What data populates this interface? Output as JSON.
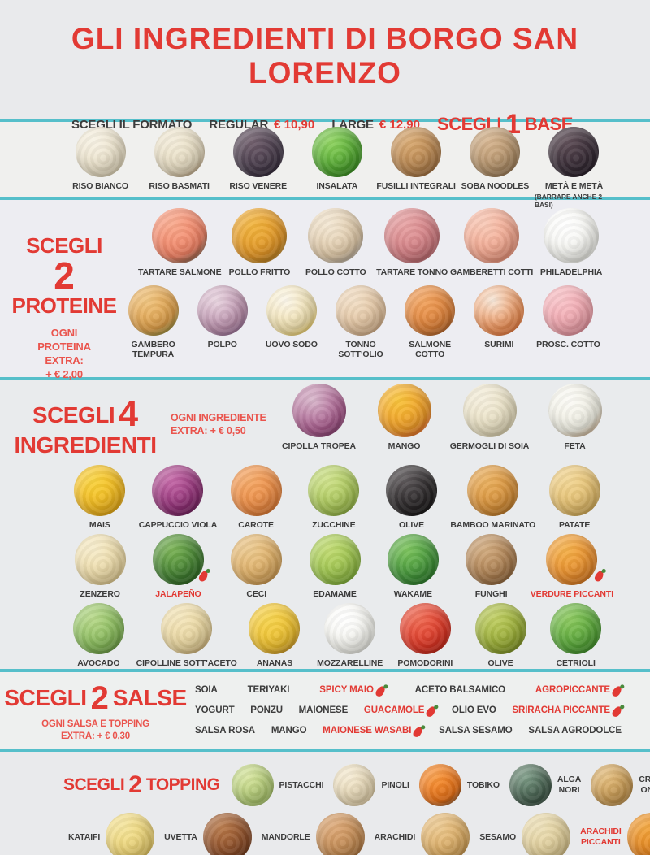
{
  "page": {
    "title": "GLI INGREDIENTI DI BORGO SAN LORENZO",
    "colors": {
      "accent_red": "#e23a34",
      "note_red": "#ea544d",
      "teal": "#56bfca",
      "text_dark": "#3c3c3c"
    }
  },
  "format_bar": {
    "choose_label": "SCEGLI IL FORMATO",
    "options": [
      {
        "name": "REGULAR",
        "price": "€ 10,90"
      },
      {
        "name": "LARGE",
        "price": "€ 12,90"
      }
    ],
    "base_heading": {
      "word1": "SCEGLI",
      "num": "1",
      "word2": "BASE"
    }
  },
  "base": {
    "items": [
      {
        "label": "RISO BIANCO",
        "colors": [
          "#f7f2e4",
          "#e9dfc6",
          "#d5c8a5"
        ]
      },
      {
        "label": "RISO BASMATI",
        "colors": [
          "#f3ecd9",
          "#e4d9be",
          "#9c7c54"
        ]
      },
      {
        "label": "RISO VENERE",
        "colors": [
          "#6e5c6a",
          "#453a49",
          "#282031"
        ]
      },
      {
        "label": "INSALATA",
        "colors": [
          "#8ed45e",
          "#4da32e",
          "#2e7c1e"
        ]
      },
      {
        "label": "FUSILLI INTEGRALI",
        "colors": [
          "#d8a86f",
          "#b5834e",
          "#8a5d33"
        ]
      },
      {
        "label": "SOBA NOODLES",
        "colors": [
          "#d6b48e",
          "#b08f68",
          "#866747"
        ]
      },
      {
        "label": "METÀ E METÀ",
        "sub": "(BARRARE ANCHE 2 BASI)",
        "colors": [
          "#5c4b54",
          "#352a34",
          "#1e1720"
        ]
      }
    ]
  },
  "proteine": {
    "heading": {
      "word1": "SCEGLI",
      "num": "2",
      "word2": "PROTEINE"
    },
    "extra_note": "OGNI\nPROTEINA\nEXTRA:\n+ € 2,00",
    "rows": [
      [
        {
          "label": "TARTARE SALMONE",
          "colors": [
            "#f9a98c",
            "#ef8063",
            "#2b4a3c"
          ]
        },
        {
          "label": "POLLO FRITTO",
          "colors": [
            "#f2b53e",
            "#e09426",
            "#8a6a22"
          ]
        },
        {
          "label": "POLLO COTTO",
          "colors": [
            "#f4e8d4",
            "#ddc6a5",
            "#8e8e90"
          ]
        },
        {
          "label": "TARTARE TONNO",
          "colors": [
            "#e8a3a4",
            "#d07b80",
            "#9e5156"
          ]
        },
        {
          "label": "GAMBERETTI COTTI",
          "colors": [
            "#f9cab7",
            "#f0a28a",
            "#dd7c60"
          ]
        },
        {
          "label": "PHILADELPHIA",
          "colors": [
            "#ffffff",
            "#f3f3ee",
            "#d6d6cf"
          ]
        }
      ],
      [
        {
          "label": "GAMBERO\nTEMPURA",
          "colors": [
            "#f0c47e",
            "#de9e48",
            "#5e8440"
          ]
        },
        {
          "label": "POLPO",
          "colors": [
            "#e9d5e0",
            "#bb8fac",
            "#7e5a88"
          ]
        },
        {
          "label": "UOVO SODO",
          "colors": [
            "#fbf6ea",
            "#f3e2ad",
            "#ecc22e"
          ]
        },
        {
          "label": "TONNO\nSOTT'OLIO",
          "colors": [
            "#f2dfc6",
            "#e2c29e",
            "#c49a72"
          ]
        },
        {
          "label": "SALMONE\nCOTTO",
          "colors": [
            "#f2a35e",
            "#dd8038",
            "#8c4c22"
          ]
        },
        {
          "label": "SURIMI",
          "colors": [
            "#f6e8da",
            "#ef9258",
            "#e0662a"
          ]
        },
        {
          "label": "PROSC. COTTO",
          "colors": [
            "#f8c3c8",
            "#f0a3ac",
            "#da8290"
          ]
        }
      ]
    ]
  },
  "ingredienti": {
    "heading": {
      "word1": "SCEGLI",
      "num": "4",
      "word2": "INGREDIENTI"
    },
    "extra_note": "OGNI INGREDIENTE\nEXTRA: + € 0,50",
    "rows": [
      [
        {
          "label": "CIPOLLA TROPEA",
          "colors": [
            "#d9b8cc",
            "#a85a8c",
            "#6e2f5c"
          ]
        },
        {
          "label": "MANGO",
          "colors": [
            "#f8c43a",
            "#ef9b28",
            "#d64430"
          ]
        },
        {
          "label": "GERMOGLI DI SOIA",
          "colors": [
            "#f5efdd",
            "#e7dec0",
            "#cbbf98"
          ]
        },
        {
          "label": "FETA",
          "colors": [
            "#fcfbf6",
            "#edece0",
            "#a87848"
          ]
        }
      ],
      [
        {
          "label": "MAIS",
          "colors": [
            "#f8d23c",
            "#f2b81e",
            "#d3960f"
          ]
        },
        {
          "label": "CAPPUCCIO VIOLA",
          "colors": [
            "#c668a8",
            "#8e2f74",
            "#591a4b"
          ]
        },
        {
          "label": "CAROTE",
          "colors": [
            "#f4a866",
            "#ec8a42",
            "#cf6a26"
          ]
        },
        {
          "label": "ZUCCHINE",
          "colors": [
            "#cfe28a",
            "#a6c455",
            "#7c9f36"
          ]
        },
        {
          "label": "OLIVE",
          "colors": [
            "#5a5557",
            "#272425",
            "#0f0e0f"
          ]
        },
        {
          "label": "BAMBOO MARINATO",
          "colors": [
            "#eab05e",
            "#d68f38",
            "#a3661e"
          ]
        },
        {
          "label": "PATATE",
          "colors": [
            "#f2d694",
            "#e3bd6c",
            "#c0973f"
          ]
        }
      ],
      [
        {
          "label": "ZENZERO",
          "colors": [
            "#f6ecca",
            "#ecd9a4",
            "#d2b87a"
          ]
        },
        {
          "label": "JALAPEÑO",
          "red": true,
          "hot": true,
          "colors": [
            "#7ab354",
            "#3f7c30",
            "#235316"
          ]
        },
        {
          "label": "CECI",
          "colors": [
            "#ecc98e",
            "#ddac62",
            "#bc8640"
          ]
        },
        {
          "label": "EDAMAME",
          "colors": [
            "#c2dc72",
            "#97c049",
            "#6aa02a"
          ]
        },
        {
          "label": "WAKAME",
          "colors": [
            "#7cc45c",
            "#3f9138",
            "#1f6622"
          ]
        },
        {
          "label": "FUNGHI",
          "colors": [
            "#d2ab7e",
            "#a97c4e",
            "#77522e"
          ]
        },
        {
          "label": "VERDURE PICCANTI",
          "red": true,
          "hot": true,
          "colors": [
            "#f4b048",
            "#e88c2c",
            "#c4661a"
          ]
        }
      ],
      [
        {
          "label": "AVOCADO",
          "colors": [
            "#b8d98a",
            "#84b858",
            "#537c34"
          ]
        },
        {
          "label": "CIPOLLINE SOTT'ACETO",
          "colors": [
            "#f4e6bc",
            "#e8d49c",
            "#b38f54"
          ]
        },
        {
          "label": "ANANAS",
          "colors": [
            "#f6d44e",
            "#eebf2e",
            "#a6722a"
          ]
        },
        {
          "label": "MOZZARELLINE",
          "colors": [
            "#ffffff",
            "#f4f4ee",
            "#d7d7d0"
          ]
        },
        {
          "label": "POMODORINI",
          "colors": [
            "#ef6a52",
            "#dd3524",
            "#a31d13"
          ]
        },
        {
          "label": "OLIVE",
          "colors": [
            "#c0cf62",
            "#94a832",
            "#687a1d"
          ]
        },
        {
          "label": "CETRIOLI",
          "colors": [
            "#8cc95e",
            "#55a438",
            "#2d7820"
          ]
        }
      ]
    ]
  },
  "salse": {
    "heading": {
      "word1": "SCEGLI",
      "num": "2",
      "word2": "SALSE"
    },
    "extra_note": "OGNI SALSA E TOPPING\nEXTRA: + € 0,30",
    "rows": [
      [
        {
          "label": "SOIA"
        },
        {
          "label": "TERIYAKI"
        },
        {
          "label": "SPICY MAIO",
          "red": true,
          "hot": true
        },
        {
          "label": "ACETO BALSAMICO"
        },
        {
          "label": "AGROPICCANTE",
          "red": true,
          "hot": true
        }
      ],
      [
        {
          "label": "YOGURT"
        },
        {
          "label": "PONZU"
        },
        {
          "label": "MAIONESE"
        },
        {
          "label": "GUACAMOLE",
          "red": true,
          "hot": true
        },
        {
          "label": "OLIO EVO"
        },
        {
          "label": "SRIRACHA PICCANTE",
          "red": true,
          "hot": true
        }
      ],
      [
        {
          "label": "SALSA ROSA"
        },
        {
          "label": "MANGO"
        },
        {
          "label": "MAIONESE WASABI",
          "red": true,
          "hot": true
        },
        {
          "label": "SALSA SESAMO"
        },
        {
          "label": "SALSA AGRODOLCE"
        }
      ]
    ]
  },
  "topping": {
    "heading": {
      "word1": "SCEGLI",
      "num": "2",
      "word2": "TOPPING"
    },
    "rows": [
      [
        {
          "label": "PISTACCHI",
          "colors": [
            "#d6e49e",
            "#b2cc74",
            "#86a44a"
          ]
        },
        {
          "label": "PINOLI",
          "colors": [
            "#f4ead2",
            "#e8d8b4",
            "#c4ad82"
          ]
        },
        {
          "label": "TOBIKO",
          "colors": [
            "#f6953a",
            "#ee7418",
            "#35302c"
          ]
        },
        {
          "label": "ALGA\nNORI",
          "colors": [
            "#7a9a84",
            "#46604f",
            "#233329"
          ]
        },
        {
          "label": "CRISPY\nONION",
          "colors": [
            "#e2bc7c",
            "#c99a52",
            "#966e32"
          ]
        }
      ],
      [
        {
          "label": "KATAIFI",
          "colors": [
            "#f4e49a",
            "#ecd272",
            "#d0b04a"
          ]
        },
        {
          "label": "UVETTA",
          "colors": [
            "#b87848",
            "#8a4c28",
            "#572c14"
          ]
        },
        {
          "label": "MANDORLE",
          "colors": [
            "#dda876",
            "#c08850",
            "#925d2d"
          ]
        },
        {
          "label": "ARACHIDI",
          "colors": [
            "#ecc88e",
            "#d9a960",
            "#ad7e38"
          ]
        },
        {
          "label": "SESAMO",
          "colors": [
            "#ede0b8",
            "#dfcc96",
            "#bda66c"
          ]
        },
        {
          "label": "ARACHIDI\nPICCANTI",
          "red": true,
          "colors": [
            "#f2a53c",
            "#e2821e",
            "#ab5a10"
          ]
        }
      ]
    ]
  }
}
